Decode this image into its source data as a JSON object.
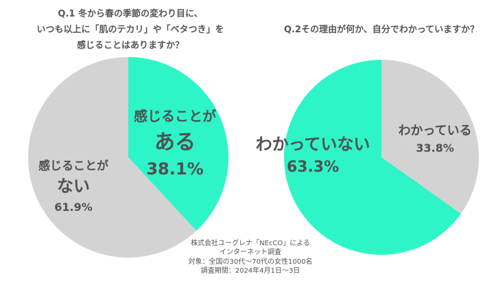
{
  "chart_data": [
    {
      "type": "pie",
      "title_lines": [
        "Q.1 冬から春の季節の変わり目に、",
        "いつも以上に「肌のテカリ」や「ベタつき」を",
        "感じることはありますか？"
      ],
      "slices": [
        {
          "label_lines": [
            "感じることが",
            "ある"
          ],
          "value": 38.1,
          "display": "38.1%",
          "color": "#2ef5c7"
        },
        {
          "label_lines": [
            "感じることが",
            "ない"
          ],
          "value": 61.9,
          "display": "61.9%",
          "color": "#d3d3d3"
        }
      ]
    },
    {
      "type": "pie",
      "title_lines": [
        "Q.2その理由が何か、自分でわかっていますか？"
      ],
      "slices": [
        {
          "label_lines": [
            "わかっている"
          ],
          "value": 33.8,
          "display": "33.8%",
          "color": "#d3d3d3"
        },
        {
          "label_lines": [
            "わかっていない"
          ],
          "value": 63.3,
          "display": "63.3%",
          "color": "#2ef5c7"
        }
      ]
    }
  ],
  "source_lines": [
    "株式会社ユーグレナ「NEcCO」による",
    "インターネット調査",
    "対象：全国の30代〜70代の女性1000名",
    "調査期間：2024年4月1日〜3日"
  ]
}
